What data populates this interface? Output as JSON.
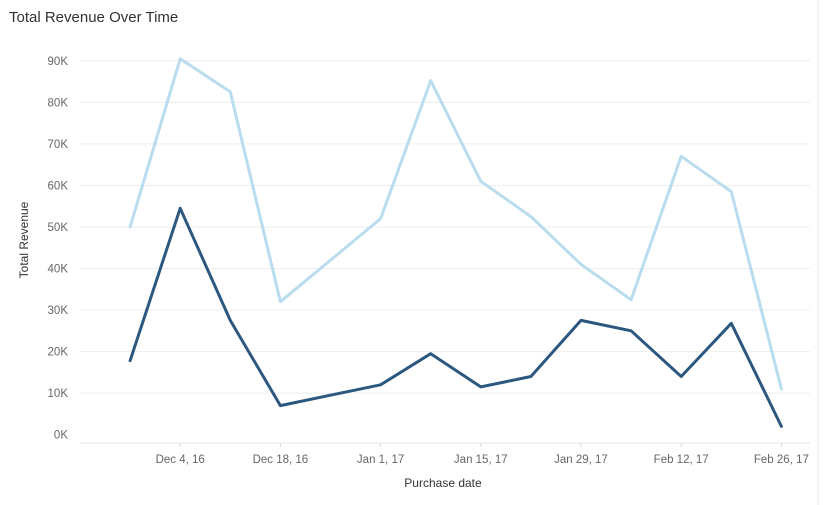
{
  "chart_data": {
    "type": "line",
    "title": "Total Revenue Over Time",
    "xlabel": "Purchase date",
    "ylabel": "Total Revenue",
    "x": [
      "2016-11-27",
      "2016-12-04",
      "2016-12-11",
      "2016-12-18",
      "2016-12-25",
      "2017-01-01",
      "2017-01-08",
      "2017-01-15",
      "2017-01-22",
      "2017-01-29",
      "2017-02-05",
      "2017-02-12",
      "2017-02-19",
      "2017-02-26"
    ],
    "x_tick_values": [
      "2016-12-04",
      "2016-12-18",
      "2017-01-01",
      "2017-01-15",
      "2017-01-29",
      "2017-02-12",
      "2017-02-26"
    ],
    "x_tick_labels": [
      "Dec 4, 16",
      "Dec 18, 16",
      "Jan 1, 17",
      "Jan 15, 17",
      "Jan 29, 17",
      "Feb 12, 17",
      "Feb 26, 17"
    ],
    "y_tick_values": [
      0,
      10000,
      20000,
      30000,
      40000,
      50000,
      60000,
      70000,
      80000,
      90000
    ],
    "y_tick_labels": [
      "0K",
      "10K",
      "20K",
      "30K",
      "40K",
      "50K",
      "60K",
      "70K",
      "80K",
      "90K"
    ],
    "ylim": [
      -2000,
      95000
    ],
    "xlim": [
      "2016-11-20",
      "2017-03-02"
    ],
    "grid": true,
    "legend": "none",
    "series": [
      {
        "color": "#b9dcee",
        "values": [
          50000,
          90500,
          82500,
          32000,
          42000,
          52000,
          85200,
          61000,
          52500,
          41000,
          32500,
          67000,
          58500,
          11000
        ]
      },
      {
        "color": "#2c5880",
        "values": [
          17800,
          54500,
          27500,
          7000,
          9500,
          12000,
          19500,
          11500,
          14000,
          27500,
          25000,
          14000,
          26800,
          2000
        ]
      }
    ]
  }
}
